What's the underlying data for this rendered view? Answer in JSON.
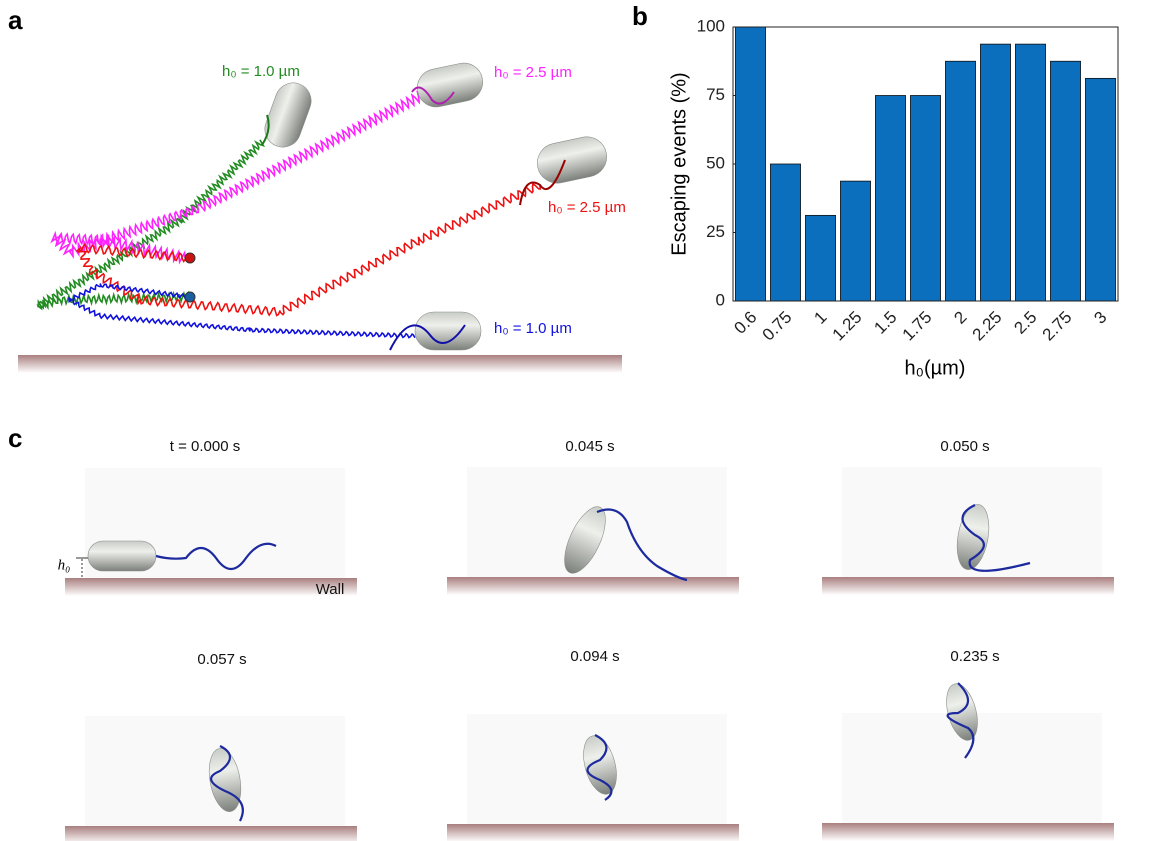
{
  "panel_labels": [
    "a",
    "b",
    "c"
  ],
  "panel_a": {
    "trajectories": [
      {
        "label": "h₀ = 1.0 µm",
        "color": "#228b22"
      },
      {
        "label": "h₀ = 2.5 µm",
        "color": "#ff22ff"
      },
      {
        "label": "h₀ = 2.5 µm",
        "color": "#ee1111"
      },
      {
        "label": "h₀ = 1.0 µm",
        "color": "#1111dd"
      }
    ]
  },
  "chart_data": {
    "type": "bar",
    "ylabel": "Escaping events (%)",
    "xlabel": "h₀(µm)",
    "categories": [
      "0.6",
      "0.75",
      "1",
      "1.25",
      "1.5",
      "1.75",
      "2",
      "2.25",
      "2.5",
      "2.75",
      "3"
    ],
    "values": [
      100,
      50,
      31.25,
      43.75,
      75,
      75,
      87.5,
      93.75,
      93.75,
      87.5,
      81.25
    ],
    "color": "#0b6fbe",
    "ylim": [
      0,
      100
    ],
    "yticks": [
      0,
      25,
      50,
      75,
      100
    ]
  },
  "panel_c": {
    "wall_label": "Wall",
    "height_label": "h₀",
    "times": [
      "t = 0.000 s",
      "0.045 s",
      "0.050 s",
      "0.057 s",
      "0.094 s",
      "0.235 s"
    ]
  }
}
